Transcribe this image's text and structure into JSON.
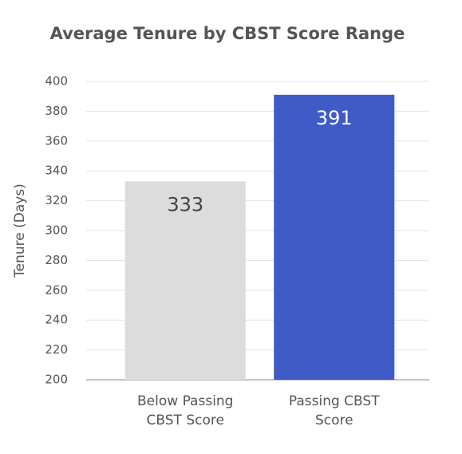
{
  "chart_data": {
    "type": "bar",
    "title": "Average Tenure by CBST Score Range",
    "y_label": "Tenure (Days)",
    "categories": [
      "Below Passing CBST Score",
      "Passing CBST Score"
    ],
    "values": [
      333,
      391
    ],
    "colors": [
      "#dcdcdc",
      "#3f5bc8"
    ],
    "value_label_colors": [
      "#444444",
      "#ffffff"
    ],
    "ylim": [
      200,
      400
    ],
    "yticks": [
      200,
      220,
      240,
      260,
      280,
      300,
      320,
      340,
      360,
      380,
      400
    ],
    "grid": true
  }
}
